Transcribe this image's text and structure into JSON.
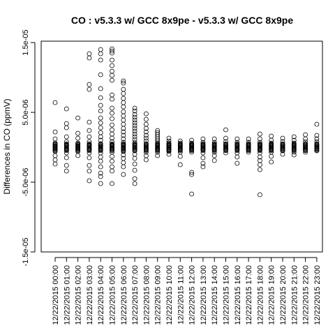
{
  "chart_data": {
    "type": "scatter",
    "title": "CO : v5.3.3 w/ GCC 8x9pe - v5.3.3 w/ GCC 8x9pe",
    "xlabel": "",
    "ylabel": "Differences in CO (ppmV)",
    "ylim": [
      -1.5e-05,
      1.5e-05
    ],
    "yticks": [
      -1.5e-05,
      -5e-06,
      5e-06,
      1.5e-05
    ],
    "ytick_labels": [
      "-1.5e-05",
      "-5.0e-06",
      "5.0e-06",
      "1.5e-05"
    ],
    "grid": false,
    "categories": [
      "12/22/2015 00:00",
      "12/22/2015 01:00",
      "12/22/2015 02:00",
      "12/22/2015 03:00",
      "12/22/2015 04:00",
      "12/22/2015 05:00",
      "12/22/2015 06:00",
      "12/22/2015 07:00",
      "12/22/2015 08:00",
      "12/22/2015 09:00",
      "12/22/2015 10:00",
      "12/22/2015 11:00",
      "12/22/2015 12:00",
      "12/22/2015 13:00",
      "12/22/2015 14:00",
      "12/22/2015 15:00",
      "12/22/2015 16:00",
      "12/22/2015 17:00",
      "12/22/2015 18:00",
      "12/22/2015 19:00",
      "12/22/2015 20:00",
      "12/22/2015 21:00",
      "12/22/2015 22:00",
      "12/22/2015 23:00"
    ],
    "series": [
      {
        "points_by_category": [
          [
            6.4e-06,
            2.2e-06,
            1.2e-06,
            6e-07,
            2e-07,
            -2e-07,
            -6e-07,
            -1.2e-06,
            -1.8e-06,
            -2.4e-06
          ],
          [
            5.5e-06,
            3.4e-06,
            2.8e-06,
            1.5e-06,
            8e-07,
            3e-07,
            -3e-07,
            -8e-07,
            -1.5e-06,
            -2.6e-06,
            -3.4e-06
          ],
          [
            4.2e-06,
            2e-06,
            1.3e-06,
            6e-07,
            2e-07,
            -2e-07,
            -6e-07,
            -1.2e-06
          ],
          [
            1.34e-05,
            1.28e-05,
            9e-06,
            8.3e-06,
            3.6e-06,
            2.4e-06,
            1.5e-06,
            8e-07,
            3e-07,
            -3e-07,
            -8e-07,
            -1.5e-06,
            -2.6e-06,
            -3.4e-06,
            -4.8e-06
          ],
          [
            1.4e-05,
            1.34e-05,
            1.25e-05,
            1.04e-05,
            8.4e-06,
            7.1e-06,
            6e-06,
            5.2e-06,
            4.2e-06,
            3.5e-06,
            2.8e-06,
            2.1e-06,
            1.5e-06,
            1e-06,
            5e-07,
            1e-07,
            -3e-07,
            -8e-07,
            -1.4e-06,
            -2e-06,
            -2.8e-06,
            -3.7e-06,
            -4.2e-06,
            -5.2e-06
          ],
          [
            1.41e-05,
            1.38e-05,
            1.35e-05,
            1.25e-05,
            1.17e-05,
            1.09e-05,
            1.03e-05,
            9.6e-06,
            7.5e-06,
            6.9e-06,
            5.6e-06,
            4.9e-06,
            4.1e-06,
            3.2e-06,
            2.5e-06,
            1.9e-06,
            1.3e-06,
            8e-07,
            3e-07,
            -2e-07,
            -7e-07,
            -1.3e-06,
            -2e-06,
            -2.8e-06,
            -3.4e-06,
            -5.2e-06
          ],
          [
            9.5e-06,
            9.2e-06,
            8.3e-06,
            7.7e-06,
            7e-06,
            6.4e-06,
            5.8e-06,
            5.1e-06,
            4.5e-06,
            3.9e-06,
            3.3e-06,
            2.7e-06,
            2.2e-06,
            1.7e-06,
            1.2e-06,
            7e-07,
            3e-07,
            -2e-07,
            -6e-07,
            -1.1e-06,
            -1.6e-06,
            -2.2e-06,
            -2.8e-06,
            -3.9e-06
          ],
          [
            5.6e-06,
            5.2e-06,
            4.7e-06,
            4.3e-06,
            3.9e-06,
            3.5e-06,
            3.1e-06,
            2.7e-06,
            2.3e-06,
            1.9e-06,
            1.5e-06,
            1.1e-06,
            7e-07,
            3e-07,
            -1e-07,
            -5e-07,
            -1e-06,
            -1.6e-06,
            -2.4e-06,
            -3.3e-06,
            -4.5e-06,
            -5.2e-06
          ],
          [
            4.8e-06,
            4e-06,
            3.3e-06,
            2.7e-06,
            2.2e-06,
            1.7e-06,
            1.3e-06,
            9e-07,
            5e-07,
            1e-07,
            -3e-07,
            -7e-07,
            -1.2e-06,
            -1.8e-06
          ],
          [
            2.4e-06,
            2.1e-06,
            1.8e-06,
            1.5e-06,
            1.2e-06,
            9e-07,
            6e-07,
            3e-07,
            0,
            -3e-07,
            -7e-07,
            -1.2e-06
          ],
          [
            1.3e-06,
            9e-07,
            6e-07,
            3e-07,
            0,
            -3e-07,
            -6e-07,
            -1e-06
          ],
          [
            9e-07,
            6e-07,
            3e-07,
            0,
            -3e-07,
            -7e-07,
            -1.3e-06,
            -2.5e-06
          ],
          [
            1e-06,
            6e-07,
            3e-07,
            0,
            -3e-07,
            -7e-07,
            -3.6e-06,
            -3.9e-06,
            -6.7e-06
          ],
          [
            1.2e-06,
            7e-07,
            3e-07,
            0,
            -3e-07,
            -8e-07,
            -1.5e-06,
            -2.3e-06,
            -2.8e-06
          ],
          [
            1.2e-06,
            7e-07,
            3e-07,
            0,
            -3e-07,
            -7e-07,
            -1.2e-06,
            -1.9e-06
          ],
          [
            2.5e-06,
            1.3e-06,
            8e-07,
            4e-07,
            0,
            -4e-07,
            -8e-07
          ],
          [
            1.2e-06,
            7e-07,
            3e-07,
            0,
            -3e-07,
            -8e-07,
            -1.4e-06,
            -2.3e-06
          ],
          [
            1.2e-06,
            7e-07,
            3e-07,
            0,
            -3e-07,
            -7e-07
          ],
          [
            1.9e-06,
            1.2e-06,
            7e-07,
            3e-07,
            0,
            -3e-07,
            -8e-07,
            -1.4e-06,
            -1.9e-06,
            -2.5e-06,
            -3.2e-06,
            -6.8e-06
          ],
          [
            1.6e-06,
            1e-06,
            6e-07,
            3e-07,
            0,
            -3e-07,
            -7e-07,
            -1.3e-06,
            -2.1e-06
          ],
          [
            1.3e-06,
            8e-07,
            4e-07,
            1e-07,
            -2e-07,
            -5e-07,
            -1e-06
          ],
          [
            1.5e-06,
            1e-06,
            6e-07,
            3e-07,
            0,
            -3e-07,
            -7e-07,
            -1.1e-06
          ],
          [
            1.8e-06,
            1.2e-06,
            8e-07,
            5e-07,
            2e-07,
            -1e-07,
            -4e-07,
            -7e-07
          ],
          [
            3.3e-06,
            1.7e-06,
            1.2e-06,
            8e-07,
            4e-07,
            1e-07,
            -2e-07,
            -5e-07
          ]
        ]
      }
    ]
  }
}
